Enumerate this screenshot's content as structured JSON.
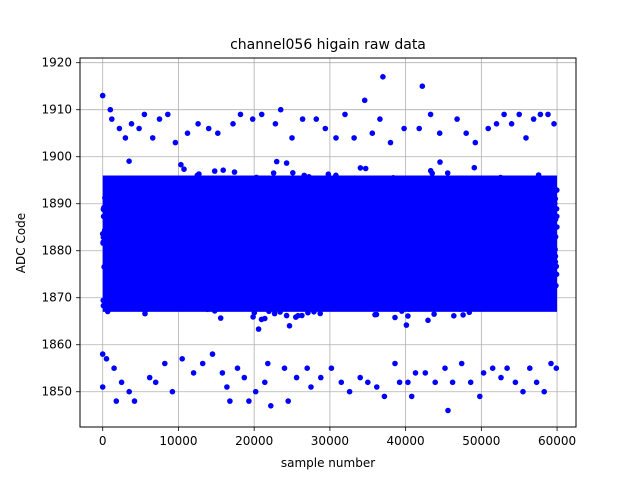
{
  "chart_data": {
    "type": "scatter",
    "title": "channel056 higain raw data",
    "xlabel": "sample number",
    "ylabel": "ADC Code",
    "xlim": [
      -3000,
      62500
    ],
    "ylim": [
      1842.5,
      1921
    ],
    "xticks": [
      0,
      10000,
      20000,
      30000,
      40000,
      50000,
      60000
    ],
    "xtick_labels": [
      "0",
      "10000",
      "20000",
      "30000",
      "40000",
      "50000",
      "60000"
    ],
    "yticks": [
      1850,
      1860,
      1870,
      1880,
      1890,
      1900,
      1910,
      1920
    ],
    "ytick_labels": [
      "1850",
      "1860",
      "1870",
      "1880",
      "1890",
      "1900",
      "1910",
      "1920"
    ],
    "grid": true,
    "marker_color": "#0000ff",
    "series": [
      {
        "n_points": 60000,
        "x_range": [
          0,
          59999
        ],
        "dense_band": [
          1866,
          1897
        ],
        "points": [
          [
            0,
            1913
          ],
          [
            0,
            1851
          ],
          [
            0,
            1858
          ],
          [
            500,
            1857
          ],
          [
            1000,
            1910
          ],
          [
            1200,
            1908
          ],
          [
            1500,
            1855
          ],
          [
            1800,
            1848
          ],
          [
            2200,
            1906
          ],
          [
            2500,
            1852
          ],
          [
            3000,
            1904
          ],
          [
            3500,
            1850
          ],
          [
            3800,
            1907
          ],
          [
            4200,
            1848
          ],
          [
            4800,
            1906
          ],
          [
            5500,
            1909
          ],
          [
            6200,
            1853
          ],
          [
            6600,
            1904
          ],
          [
            7000,
            1852
          ],
          [
            7500,
            1908
          ],
          [
            8200,
            1856
          ],
          [
            8600,
            1909
          ],
          [
            9200,
            1850
          ],
          [
            9600,
            1903
          ],
          [
            10500,
            1857
          ],
          [
            11200,
            1905
          ],
          [
            12000,
            1854
          ],
          [
            12600,
            1907
          ],
          [
            13200,
            1856
          ],
          [
            14000,
            1906
          ],
          [
            14500,
            1858
          ],
          [
            15200,
            1905
          ],
          [
            15800,
            1854
          ],
          [
            16400,
            1851
          ],
          [
            16800,
            1848
          ],
          [
            17200,
            1907
          ],
          [
            17800,
            1855
          ],
          [
            18200,
            1909
          ],
          [
            18700,
            1853
          ],
          [
            19300,
            1848
          ],
          [
            19800,
            1908
          ],
          [
            20200,
            1850
          ],
          [
            21000,
            1909
          ],
          [
            21400,
            1852
          ],
          [
            21800,
            1856
          ],
          [
            22200,
            1847
          ],
          [
            22800,
            1907
          ],
          [
            23500,
            1910
          ],
          [
            24000,
            1855
          ],
          [
            24500,
            1848
          ],
          [
            25000,
            1904
          ],
          [
            25600,
            1853
          ],
          [
            26400,
            1908
          ],
          [
            27000,
            1855
          ],
          [
            27500,
            1851
          ],
          [
            28200,
            1908
          ],
          [
            28800,
            1853
          ],
          [
            29400,
            1906
          ],
          [
            30200,
            1855
          ],
          [
            30800,
            1904
          ],
          [
            31500,
            1852
          ],
          [
            32000,
            1909
          ],
          [
            32600,
            1850
          ],
          [
            33200,
            1904
          ],
          [
            34000,
            1853
          ],
          [
            34600,
            1912
          ],
          [
            35000,
            1852
          ],
          [
            35600,
            1905
          ],
          [
            36200,
            1851
          ],
          [
            36600,
            1908
          ],
          [
            37000,
            1917
          ],
          [
            37200,
            1849
          ],
          [
            38000,
            1903
          ],
          [
            38600,
            1856
          ],
          [
            39200,
            1852
          ],
          [
            39800,
            1906
          ],
          [
            40300,
            1852
          ],
          [
            40800,
            1849
          ],
          [
            41300,
            1854
          ],
          [
            41800,
            1906
          ],
          [
            42200,
            1915
          ],
          [
            42600,
            1854
          ],
          [
            43300,
            1909
          ],
          [
            43900,
            1852
          ],
          [
            44500,
            1905
          ],
          [
            45200,
            1855
          ],
          [
            45600,
            1846
          ],
          [
            46200,
            1852
          ],
          [
            46800,
            1908
          ],
          [
            47400,
            1856
          ],
          [
            48000,
            1905
          ],
          [
            48600,
            1852
          ],
          [
            49200,
            1903
          ],
          [
            49800,
            1849
          ],
          [
            50300,
            1854
          ],
          [
            50900,
            1906
          ],
          [
            51500,
            1855
          ],
          [
            52000,
            1907
          ],
          [
            52600,
            1853
          ],
          [
            53000,
            1909
          ],
          [
            53400,
            1855
          ],
          [
            54000,
            1907
          ],
          [
            54500,
            1852
          ],
          [
            55000,
            1909
          ],
          [
            55500,
            1850
          ],
          [
            55900,
            1904
          ],
          [
            56400,
            1855
          ],
          [
            56900,
            1908
          ],
          [
            57300,
            1852
          ],
          [
            57800,
            1909
          ],
          [
            58300,
            1850
          ],
          [
            58800,
            1909
          ],
          [
            59200,
            1856
          ],
          [
            59600,
            1907
          ],
          [
            59900,
            1855
          ]
        ]
      }
    ]
  }
}
